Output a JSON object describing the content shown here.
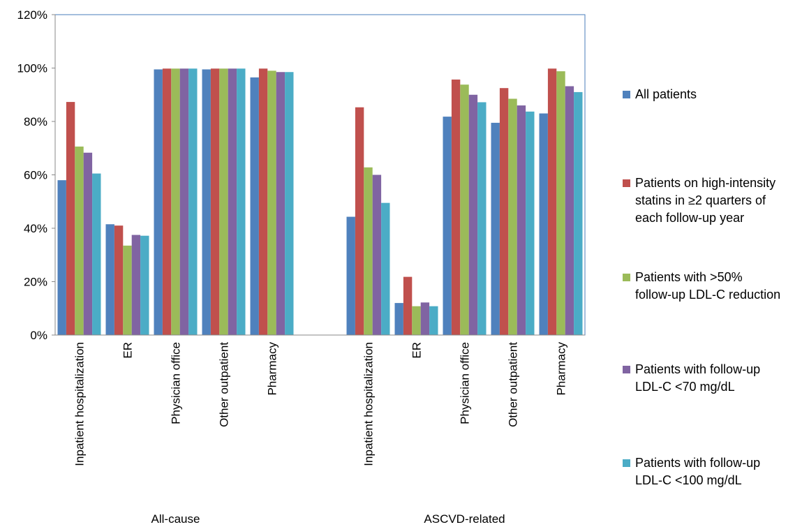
{
  "colors": {
    "plot_border": "#4a7ebb",
    "axis": "#888888"
  },
  "chart_data": {
    "type": "bar",
    "title": "",
    "xlabel": "",
    "ylabel": "",
    "ylim": [
      0,
      120
    ],
    "yticks": [
      0,
      20,
      40,
      60,
      80,
      100,
      120
    ],
    "ytick_labels": [
      "0%",
      "20%",
      "40%",
      "60%",
      "80%",
      "100%",
      "120%"
    ],
    "grid": false,
    "legend_position": "right",
    "groups": [
      {
        "label": "All-cause",
        "categories": [
          "Inpatient hospitalization",
          "ER",
          "Physician office",
          "Other outpatient",
          "Pharmacy"
        ]
      },
      {
        "label": "ASCVD-related",
        "categories": [
          "Inpatient hospitalization",
          "ER",
          "Physician office",
          "Other outpatient",
          "Pharmacy"
        ]
      }
    ],
    "series": [
      {
        "name": "All patients",
        "color": "#4f81bd",
        "values": [
          58,
          41.5,
          99.5,
          99.5,
          96.5,
          44.3,
          12,
          81.8,
          79.5,
          83
        ]
      },
      {
        "name": "Patients on high-intensity statins in ≥2 quarters of each follow-up year",
        "name_lines": [
          "Patients on high-intensity",
          "statins in ≥2 quarters of",
          "each follow-up year"
        ],
        "color": "#c0504d",
        "values": [
          87.3,
          41,
          99.8,
          99.8,
          99.8,
          85.3,
          21.8,
          95.7,
          92.5,
          99.8
        ]
      },
      {
        "name": "Patients with >50% follow-up LDL-C reduction",
        "name_lines": [
          "Patients with >50%",
          "follow-up LDL-C reduction"
        ],
        "color": "#9bbb59",
        "values": [
          70.6,
          33.5,
          99.8,
          99.8,
          99,
          62.8,
          10.8,
          93.8,
          88.5,
          98.8
        ]
      },
      {
        "name": "Patients with follow-up LDL-C <70 mg/dL",
        "name_lines": [
          "Patients with follow-up",
          "LDL-C <70 mg/dL"
        ],
        "color": "#8064a2",
        "values": [
          68.3,
          37.5,
          99.8,
          99.8,
          98.5,
          60,
          12.2,
          90,
          86,
          93.2
        ]
      },
      {
        "name": "Patients with follow-up LDL-C <100 mg/dL",
        "name_lines": [
          "Patients with follow-up",
          "LDL-C <100 mg/dL"
        ],
        "color": "#4bacc6",
        "values": [
          60.5,
          37.2,
          99.8,
          99.8,
          98.5,
          49.5,
          10.8,
          87.2,
          83.7,
          91
        ]
      }
    ]
  }
}
